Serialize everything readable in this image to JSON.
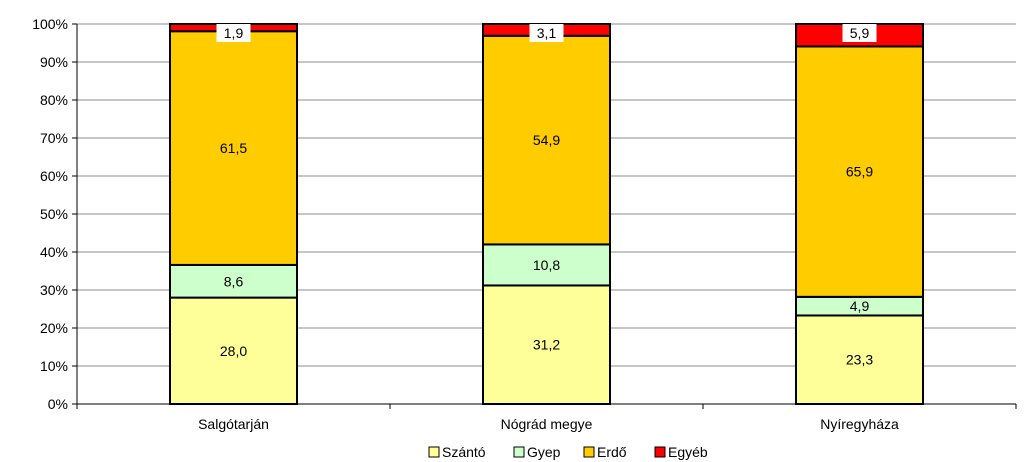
{
  "chart_data": {
    "type": "bar",
    "stacked": true,
    "percent_scale": true,
    "categories": [
      "Salgótarján",
      "Nógrád megye",
      "Nyíregyháza"
    ],
    "series": [
      {
        "name": "Szántó",
        "values": [
          28.0,
          31.2,
          23.3
        ],
        "labels": [
          "28,0",
          "31,2",
          "23,3"
        ],
        "color": "#FFFF99"
      },
      {
        "name": "Gyep",
        "values": [
          8.6,
          10.8,
          4.9
        ],
        "labels": [
          "8,6",
          "10,8",
          "4,9"
        ],
        "color": "#CCFFCC"
      },
      {
        "name": "Erdő",
        "values": [
          61.5,
          54.9,
          65.9
        ],
        "labels": [
          "61,5",
          "54,9",
          "65,9"
        ],
        "color": "#FFCC00"
      },
      {
        "name": "Egyéb",
        "values": [
          1.9,
          3.1,
          5.9
        ],
        "labels": [
          "1,9",
          "3,1",
          "5,9"
        ],
        "color": "#FF0000"
      }
    ],
    "y_ticks": [
      "0%",
      "10%",
      "20%",
      "30%",
      "40%",
      "50%",
      "60%",
      "70%",
      "80%",
      "90%",
      "100%"
    ],
    "ylim": [
      0,
      100
    ],
    "grid": true,
    "legend_position": "bottom"
  }
}
